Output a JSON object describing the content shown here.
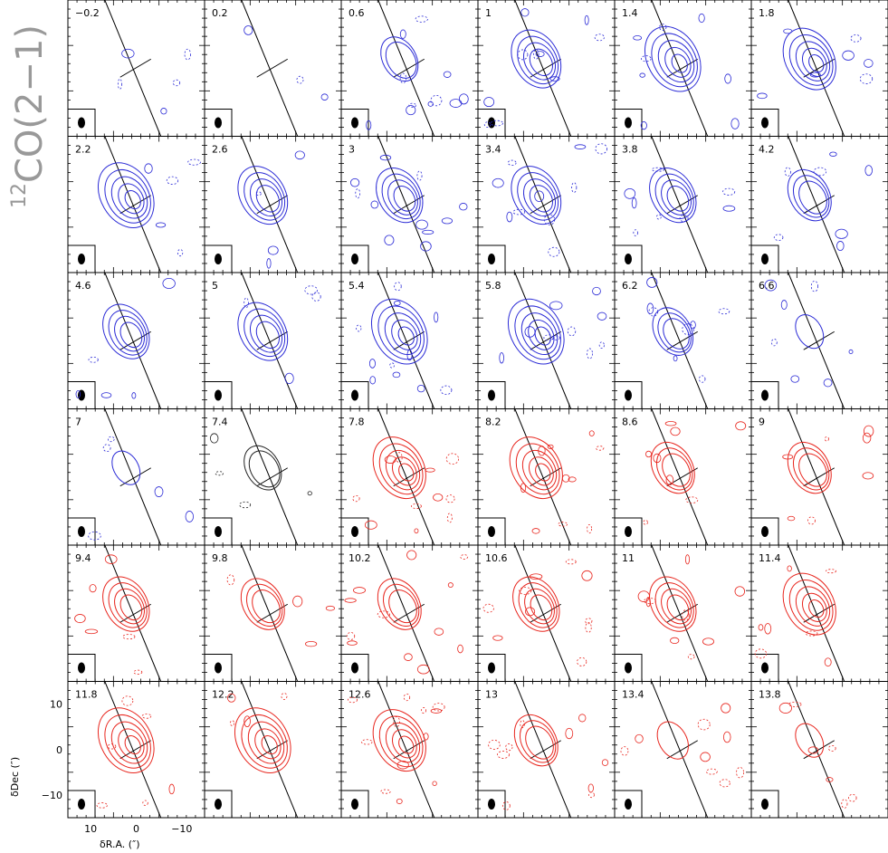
{
  "figure": {
    "title_main": "CO(2−1)",
    "title_sup": "12",
    "xlabel": "δR.A. (″)",
    "ylabel": "δDec (″)"
  },
  "chart_data": {
    "type": "contour-channel-map",
    "grid": {
      "rows": 6,
      "cols": 6
    },
    "channels": [
      "−0.2",
      "0.2",
      "0.6",
      "1",
      "1.4",
      "1.8",
      "2.2",
      "2.6",
      "3",
      "3.4",
      "3.8",
      "4.2",
      "4.6",
      "5",
      "5.4",
      "5.8",
      "6.2",
      "6.6",
      "7",
      "7.4",
      "7.8",
      "8.2",
      "8.6",
      "9",
      "9.4",
      "9.8",
      "10.2",
      "10.6",
      "11",
      "11.4",
      "11.8",
      "12.2",
      "12.6",
      "13",
      "13.4",
      "13.8"
    ],
    "x_ticks": [
      "10",
      "0",
      "−10"
    ],
    "y_ticks": [
      "10",
      "0",
      "−10"
    ],
    "xlim": [
      15,
      -15
    ],
    "ylim": [
      -15,
      15
    ],
    "colors": {
      "blueshifted": "#2b2bd6",
      "redshifted": "#e8261e",
      "systemic": "#222222",
      "axis_line": "#000000"
    },
    "blue_channels_upto": "7",
    "systemic_channel": "7.4",
    "red_channels_from": "7.8",
    "emission_strength": [
      0,
      0,
      0.4,
      0.8,
      1,
      0.9,
      1,
      0.8,
      0.7,
      0.8,
      0.7,
      0.6,
      0.7,
      0.8,
      1,
      1,
      0.5,
      0.1,
      0.1,
      0.4,
      0.9,
      0.9,
      0.6,
      0.6,
      0.7,
      0.6,
      0.6,
      0.7,
      0.7,
      0.9,
      1,
      1,
      0.9,
      0.6,
      0.2,
      0.1
    ]
  }
}
